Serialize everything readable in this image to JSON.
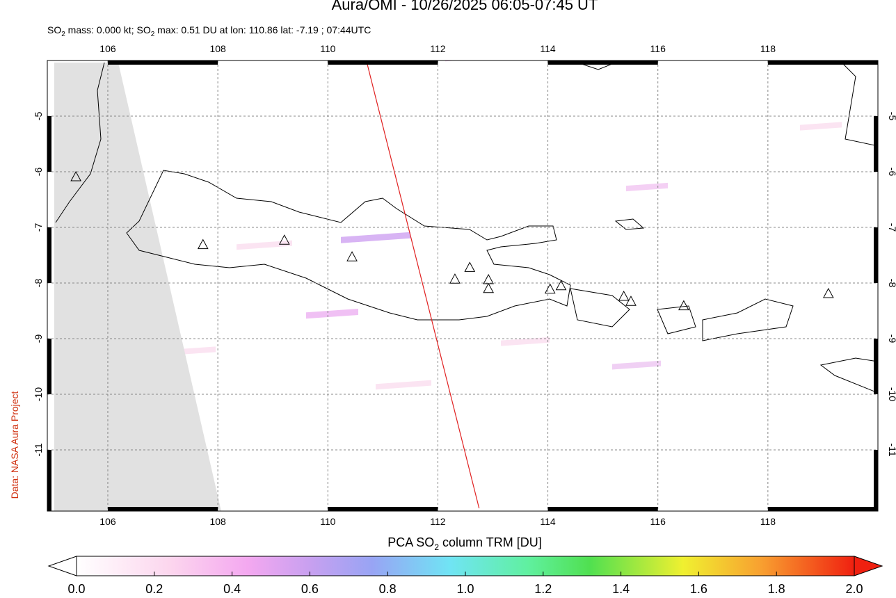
{
  "header": {
    "title": "Aura/OMI - 10/26/2025 06:05-07:45 UT",
    "subtitle": [
      "SO",
      "2",
      " mass: 0.000 kt; SO",
      "2",
      " max: 0.51 DU at lon: 110.86 lat: -7.19 ; 07:44UTC"
    ]
  },
  "map": {
    "xlim": [
      104.9,
      120.0
    ],
    "ylim": [
      -12.1,
      -4
    ],
    "xticks": [
      106,
      108,
      110,
      112,
      114,
      116,
      118
    ],
    "yticks": [
      -5,
      -6,
      -7,
      -8,
      -9,
      -10,
      -11
    ],
    "volcanoes": [
      [
        105.42,
        -6.1
      ],
      [
        107.73,
        -7.32
      ],
      [
        109.21,
        -7.24
      ],
      [
        110.44,
        -7.54
      ],
      [
        112.31,
        -7.94
      ],
      [
        112.58,
        -7.73
      ],
      [
        112.92,
        -7.95
      ],
      [
        112.92,
        -8.11
      ],
      [
        114.04,
        -8.12
      ],
      [
        114.24,
        -8.06
      ],
      [
        115.38,
        -8.25
      ],
      [
        115.51,
        -8.34
      ],
      [
        116.47,
        -8.42
      ],
      [
        119.1,
        -8.2
      ]
    ],
    "track": [
      [
        110.7,
        -4
      ],
      [
        112.75,
        -12.05
      ]
    ]
  },
  "colorbar": {
    "label": [
      "PCA SO",
      "2",
      " column TRM [DU]"
    ],
    "lim": [
      0,
      2.0
    ],
    "ticks": [
      {
        "value": 0,
        "label": "0.0"
      },
      {
        "value": 0.2,
        "label": "0.2"
      },
      {
        "value": 0.4,
        "label": "0.4"
      },
      {
        "value": 0.6,
        "label": "0.6"
      },
      {
        "value": 0.8,
        "label": "0.8"
      },
      {
        "value": 1,
        "label": "1.0"
      },
      {
        "value": 1.2,
        "label": "1.2"
      },
      {
        "value": 1.4,
        "label": "1.4"
      },
      {
        "value": 1.6,
        "label": "1.6"
      },
      {
        "value": 1.8,
        "label": "1.8"
      },
      {
        "value": 2,
        "label": "2.0"
      }
    ]
  },
  "credit": "Data: NASA Aura Project"
}
